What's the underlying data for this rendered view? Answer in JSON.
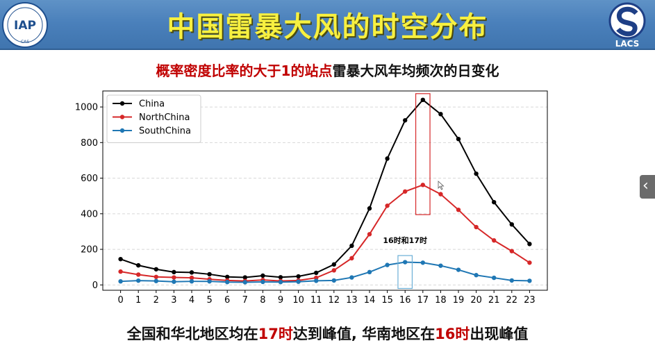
{
  "header": {
    "title": "中国雷暴大风的时空分布",
    "left_logo_text": "IAP",
    "left_logo_sub": "CAS",
    "right_logo_text": "LACS"
  },
  "subtitle": {
    "highlight": "概率密度比率的大于1的站点",
    "rest": "雷暴大风年均频次的日变化"
  },
  "chart_data": {
    "type": "line",
    "title": "",
    "xlabel": "",
    "ylabel": "",
    "x": [
      0,
      1,
      2,
      3,
      4,
      5,
      6,
      7,
      8,
      9,
      10,
      11,
      12,
      13,
      14,
      15,
      16,
      17,
      18,
      19,
      20,
      21,
      22,
      23
    ],
    "xlim": [
      -1,
      24
    ],
    "ylim": [
      -30,
      1090
    ],
    "yticks": [
      0,
      200,
      400,
      600,
      800,
      1000
    ],
    "grid": "horizontal-dashed",
    "legend_position": "top-left",
    "series": [
      {
        "name": "China",
        "color": "#000000",
        "values": [
          145,
          110,
          88,
          72,
          70,
          60,
          45,
          42,
          52,
          43,
          48,
          68,
          115,
          220,
          430,
          710,
          925,
          1040,
          960,
          820,
          625,
          465,
          340,
          230
        ]
      },
      {
        "name": "NorthChina",
        "color": "#d62728",
        "values": [
          75,
          58,
          45,
          42,
          40,
          32,
          25,
          22,
          28,
          22,
          25,
          40,
          82,
          150,
          285,
          445,
          525,
          562,
          510,
          422,
          325,
          250,
          190,
          125
        ]
      },
      {
        "name": "SouthChina",
        "color": "#1f77b4",
        "values": [
          20,
          24,
          22,
          18,
          20,
          20,
          16,
          15,
          17,
          16,
          18,
          23,
          25,
          42,
          72,
          112,
          128,
          125,
          108,
          85,
          55,
          40,
          25,
          23
        ]
      }
    ],
    "annotations": [
      {
        "text": "16时和17时",
        "x": 16,
        "y": 235
      },
      {
        "box": "17",
        "x_range": [
          16.6,
          17.4
        ],
        "y_range": [
          395,
          1075
        ],
        "color": "#d62728"
      },
      {
        "box": "16",
        "x_range": [
          15.6,
          16.4
        ],
        "y_range": [
          -20,
          165
        ],
        "color": "#6aaed6"
      }
    ]
  },
  "footer": {
    "part1": "全国和华北地区均在",
    "hour1": "17时",
    "part2": "达到峰值, 华南地区在",
    "hour2": "16时",
    "part3": "出现峰值"
  },
  "colors": {
    "header_bg": "#4a80bb",
    "title": "#f7f040",
    "accent_red": "#c00000"
  },
  "side_tab_icon": "chevron-left-icon"
}
